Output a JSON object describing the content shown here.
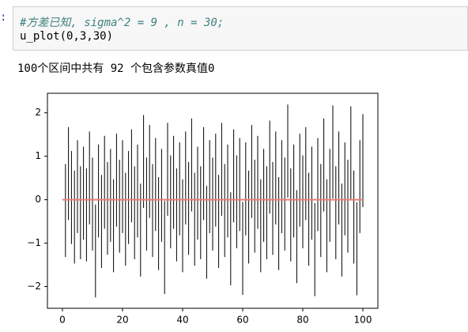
{
  "prompt": ":",
  "code": {
    "comment": "#方差已知, sigma^2 = 9 , n = 30;",
    "call": "u_plot(0,3,30)"
  },
  "output_text": "100个区间中共有 92 个包含参数真值0",
  "chart_data": {
    "type": "interval",
    "color": "#000000",
    "x": [
      1,
      2,
      3,
      4,
      5,
      6,
      7,
      8,
      9,
      10,
      11,
      12,
      13,
      14,
      15,
      16,
      17,
      18,
      19,
      20,
      21,
      22,
      23,
      24,
      25,
      26,
      27,
      28,
      29,
      30,
      31,
      32,
      33,
      34,
      35,
      36,
      37,
      38,
      39,
      40,
      41,
      42,
      43,
      44,
      45,
      46,
      47,
      48,
      49,
      50,
      51,
      52,
      53,
      54,
      55,
      56,
      57,
      58,
      59,
      60,
      61,
      62,
      63,
      64,
      65,
      66,
      67,
      68,
      69,
      70,
      71,
      72,
      73,
      74,
      75,
      76,
      77,
      78,
      79,
      80,
      81,
      82,
      83,
      84,
      85,
      86,
      87,
      88,
      89,
      90,
      91,
      92,
      93,
      94,
      95,
      96,
      97,
      98,
      99,
      100
    ],
    "lows": [
      -1.32,
      -0.47,
      -1.02,
      -1.47,
      -0.77,
      -1.37,
      -0.92,
      -1.42,
      -0.57,
      -1.17,
      -2.25,
      -0.87,
      -1.57,
      -0.67,
      -1.27,
      -0.97,
      -1.67,
      -0.62,
      -1.22,
      -0.77,
      -1.52,
      -1.02,
      -0.52,
      -1.37,
      -0.87,
      -1.77,
      -0.19,
      -1.17,
      -0.42,
      -1.32,
      -0.72,
      -1.62,
      -0.97,
      -2.17,
      -0.37,
      -1.12,
      -0.67,
      -1.42,
      -0.82,
      -1.67,
      -0.57,
      -1.27,
      -0.27,
      -1.52,
      -0.92,
      -1.37,
      -0.47,
      -1.82,
      -0.77,
      -1.17,
      -0.62,
      -1.57,
      -0.37,
      -1.32,
      -0.87,
      -1.97,
      -0.52,
      -1.12,
      -0.72,
      -2.19,
      -0.82,
      -1.47,
      -0.42,
      -1.22,
      -0.67,
      -1.67,
      -0.97,
      -1.37,
      -0.32,
      -1.27,
      -0.57,
      -1.62,
      -0.77,
      -1.17,
      0.05,
      -1.42,
      -0.87,
      -1.92,
      -0.62,
      -1.12,
      -0.47,
      -1.52,
      -0.92,
      -2.22,
      -0.72,
      -1.32,
      -0.27,
      -1.67,
      -0.97,
      0.03,
      -1.37,
      -0.57,
      -1.77,
      -0.82,
      -1.22,
      0.01,
      -1.47,
      -2.2,
      -0.77,
      -0.17
    ],
    "highs": [
      0.82,
      1.67,
      1.12,
      0.67,
      1.37,
      0.77,
      1.22,
      0.72,
      1.57,
      0.97,
      -0.11,
      1.27,
      0.57,
      1.47,
      0.87,
      1.17,
      0.47,
      1.52,
      0.92,
      1.37,
      0.62,
      1.12,
      1.62,
      0.77,
      1.27,
      0.37,
      1.95,
      0.97,
      1.72,
      0.82,
      1.42,
      0.52,
      1.17,
      -0.03,
      1.77,
      1.02,
      1.47,
      0.72,
      1.32,
      0.47,
      1.57,
      0.87,
      1.87,
      0.62,
      1.22,
      0.77,
      1.67,
      0.32,
      1.37,
      0.97,
      1.52,
      0.57,
      1.77,
      0.82,
      1.27,
      0.17,
      1.62,
      1.02,
      1.42,
      -0.05,
      1.32,
      0.67,
      1.72,
      0.92,
      1.47,
      0.47,
      1.17,
      0.77,
      1.82,
      0.87,
      1.57,
      0.52,
      1.37,
      0.97,
      2.19,
      0.72,
      1.27,
      0.22,
      1.52,
      1.02,
      1.67,
      0.62,
      1.22,
      -0.08,
      1.42,
      0.82,
      1.87,
      0.47,
      1.17,
      2.17,
      0.77,
      1.57,
      0.37,
      1.32,
      0.92,
      2.15,
      0.67,
      -0.06,
      1.37,
      1.97
    ],
    "reference_line": {
      "y": 0,
      "x": [
        0,
        100
      ],
      "color": "#e8807a"
    },
    "xlim": [
      -5,
      105
    ],
    "ylim": [
      -2.5,
      2.45
    ],
    "xticks": [
      0,
      20,
      40,
      60,
      80,
      100
    ],
    "yticks": [
      {
        "value": -2,
        "label": "−2"
      },
      {
        "value": -1,
        "label": "−1"
      },
      0,
      1,
      2
    ],
    "grid": false
  }
}
